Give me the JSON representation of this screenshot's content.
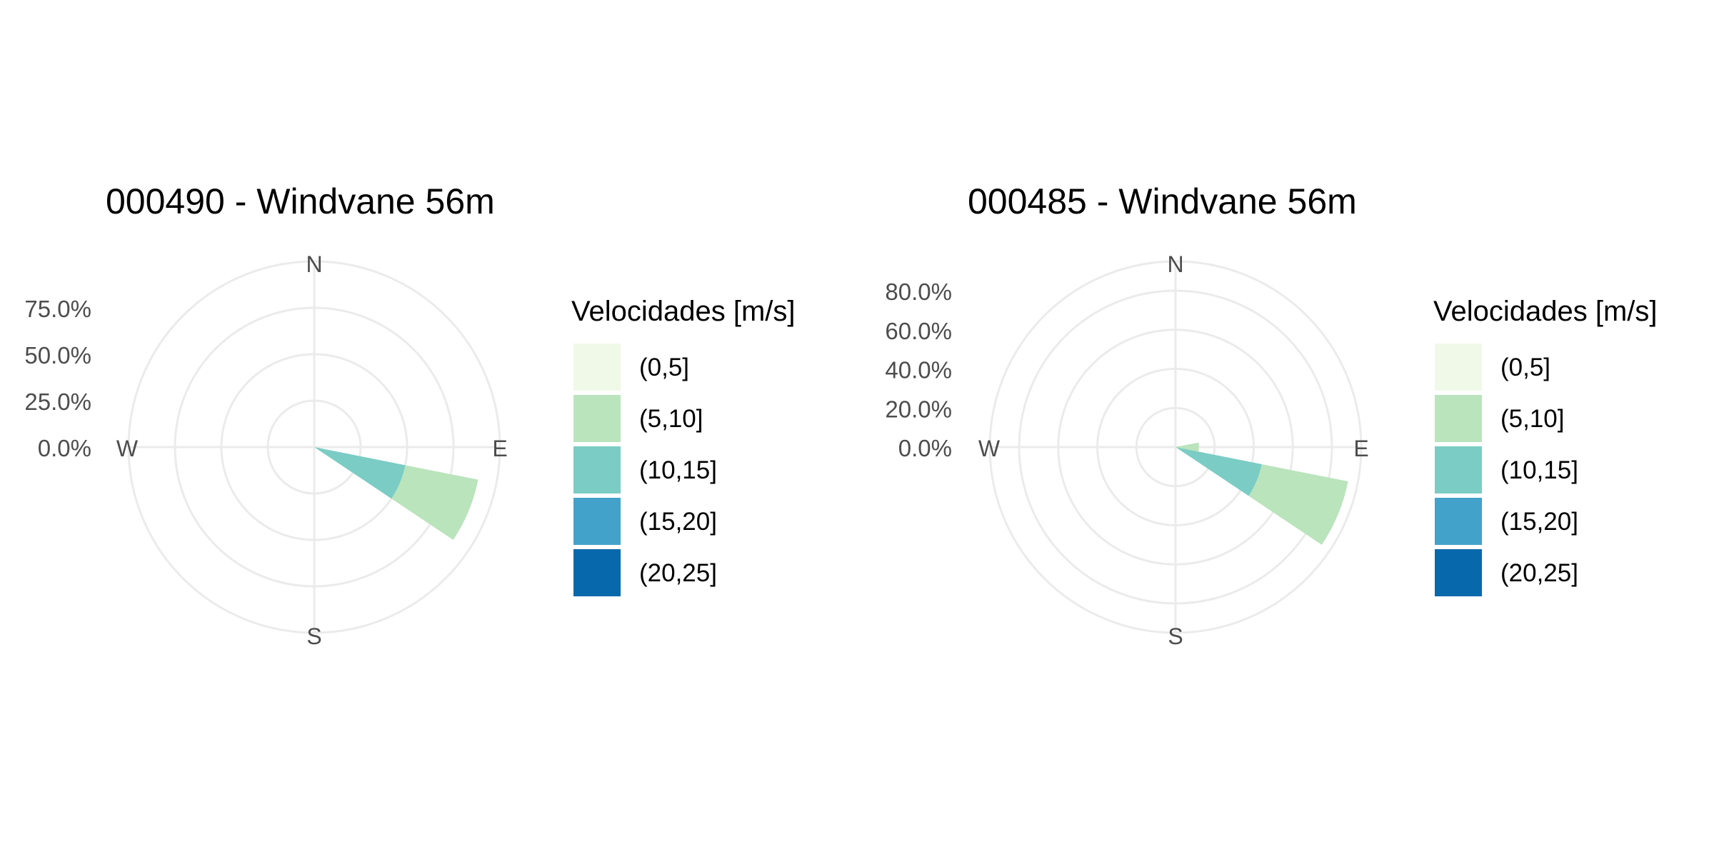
{
  "chart_data": [
    {
      "type": "wind-rose",
      "title": "000490 - Windvane 56m",
      "compass_labels": [
        "N",
        "E",
        "S",
        "W"
      ],
      "radial_ticks": [
        "0.0%",
        "25.0%",
        "50.0%",
        "75.0%"
      ],
      "radial_tick_values": [
        0,
        25,
        50,
        75
      ],
      "rmax": 100,
      "legend": {
        "title": "Velocidades [m/s]",
        "entries": [
          "(0,5]",
          "(5,10]",
          "(10,15]",
          "(15,20]",
          "(20,25]"
        ],
        "colors": [
          "#f0f9e8",
          "#bae4bc",
          "#7bccc4",
          "#43a2ca",
          "#0868ac"
        ]
      },
      "sectors": [
        {
          "direction_deg": 112.5,
          "width_deg": 22.5,
          "speed_bin": "(10,15]",
          "cum_from": 0,
          "cum_to": 50
        },
        {
          "direction_deg": 112.5,
          "width_deg": 22.5,
          "speed_bin": "(5,10]",
          "cum_from": 50,
          "cum_to": 90
        }
      ]
    },
    {
      "type": "wind-rose",
      "title": "000485 - Windvane 56m",
      "compass_labels": [
        "N",
        "E",
        "S",
        "W"
      ],
      "radial_ticks": [
        "0.0%",
        "20.0%",
        "40.0%",
        "60.0%",
        "80.0%"
      ],
      "radial_tick_values": [
        0,
        20,
        40,
        60,
        80
      ],
      "rmax": 95,
      "legend": {
        "title": "Velocidades [m/s]",
        "entries": [
          "(0,5]",
          "(5,10]",
          "(10,15]",
          "(15,20]",
          "(20,25]"
        ],
        "colors": [
          "#f0f9e8",
          "#bae4bc",
          "#7bccc4",
          "#43a2ca",
          "#0868ac"
        ]
      },
      "sectors": [
        {
          "direction_deg": 112.5,
          "width_deg": 22.5,
          "speed_bin": "(10,15]",
          "cum_from": 0,
          "cum_to": 45
        },
        {
          "direction_deg": 112.5,
          "width_deg": 22.5,
          "speed_bin": "(5,10]",
          "cum_from": 45,
          "cum_to": 90
        },
        {
          "direction_deg": 90,
          "width_deg": 22.5,
          "speed_bin": "(5,10]",
          "cum_from": 0,
          "cum_to": 12
        }
      ]
    }
  ]
}
